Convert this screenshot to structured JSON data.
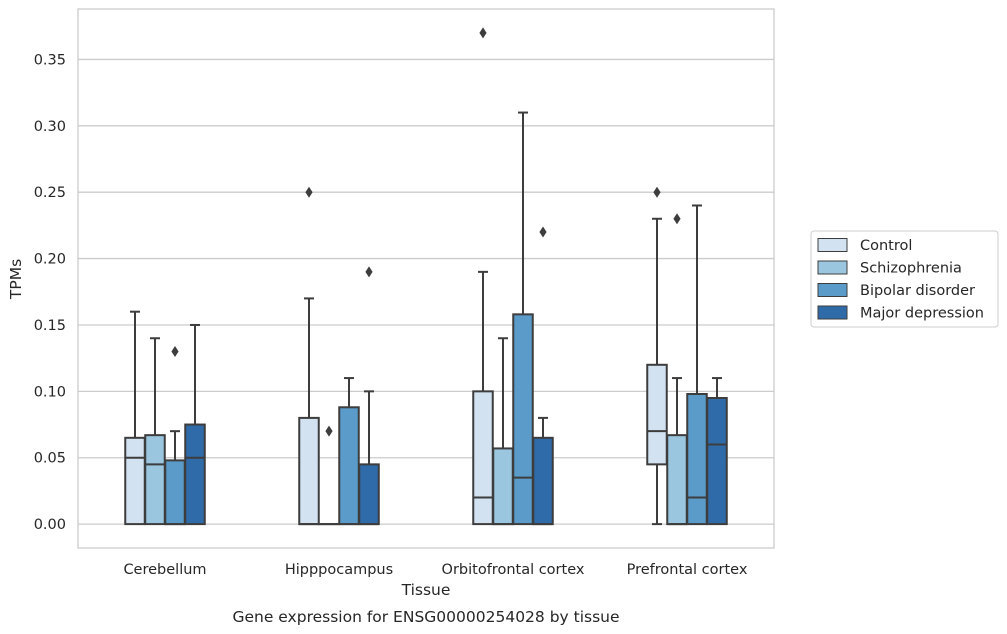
{
  "chart_data": {
    "type": "box",
    "caption": "Gene expression for ENSG00000254028 by tissue",
    "xlabel": "Tissue",
    "ylabel": "TPMs",
    "ylim": [
      -0.018,
      0.388
    ],
    "yticks": [
      0.0,
      0.05,
      0.1,
      0.15,
      0.2,
      0.25,
      0.3,
      0.35
    ],
    "ytick_labels": [
      "0.00",
      "0.05",
      "0.10",
      "0.15",
      "0.20",
      "0.25",
      "0.30",
      "0.35"
    ],
    "grid": "horizontal",
    "legend_position": "right",
    "categories": [
      "Cerebellum",
      "Hipppocampus",
      "Orbitofrontal cortex",
      "Prefrontal cortex"
    ],
    "series": [
      {
        "name": "Control",
        "color": "#d2e2f1",
        "boxes": [
          {
            "q1": 0.0,
            "median": 0.05,
            "q3": 0.065,
            "whislo": 0.0,
            "whishi": 0.16,
            "fliers": []
          },
          {
            "q1": 0.0,
            "median": 0.0,
            "q3": 0.08,
            "whislo": 0.0,
            "whishi": 0.17,
            "fliers": [
              0.25
            ]
          },
          {
            "q1": 0.0,
            "median": 0.02,
            "q3": 0.1,
            "whislo": 0.0,
            "whishi": 0.19,
            "fliers": [
              0.37
            ]
          },
          {
            "q1": 0.045,
            "median": 0.07,
            "q3": 0.12,
            "whislo": 0.0,
            "whishi": 0.23,
            "fliers": [
              0.25
            ]
          }
        ]
      },
      {
        "name": "Schizophrenia",
        "color": "#9bc6e0",
        "boxes": [
          {
            "q1": 0.0,
            "median": 0.045,
            "q3": 0.067,
            "whislo": 0.0,
            "whishi": 0.14,
            "fliers": []
          },
          {
            "q1": 0.0,
            "median": 0.0,
            "q3": 0.0,
            "whislo": 0.0,
            "whishi": 0.0,
            "fliers": [
              0.07
            ]
          },
          {
            "q1": 0.0,
            "median": 0.0,
            "q3": 0.057,
            "whislo": 0.0,
            "whishi": 0.14,
            "fliers": []
          },
          {
            "q1": 0.0,
            "median": 0.0,
            "q3": 0.067,
            "whislo": 0.0,
            "whishi": 0.11,
            "fliers": [
              0.23
            ]
          }
        ]
      },
      {
        "name": "Bipolar disorder",
        "color": "#5a9bc9",
        "boxes": [
          {
            "q1": 0.0,
            "median": 0.0,
            "q3": 0.048,
            "whislo": 0.0,
            "whishi": 0.07,
            "fliers": [
              0.13
            ]
          },
          {
            "q1": 0.0,
            "median": 0.0,
            "q3": 0.088,
            "whislo": 0.0,
            "whishi": 0.11,
            "fliers": []
          },
          {
            "q1": 0.0,
            "median": 0.035,
            "q3": 0.158,
            "whislo": 0.0,
            "whishi": 0.31,
            "fliers": []
          },
          {
            "q1": 0.0,
            "median": 0.02,
            "q3": 0.098,
            "whislo": 0.0,
            "whishi": 0.24,
            "fliers": []
          }
        ]
      },
      {
        "name": "Major depression",
        "color": "#2f6ba9",
        "boxes": [
          {
            "q1": 0.0,
            "median": 0.05,
            "q3": 0.075,
            "whislo": 0.0,
            "whishi": 0.15,
            "fliers": []
          },
          {
            "q1": 0.0,
            "median": 0.0,
            "q3": 0.045,
            "whislo": 0.0,
            "whishi": 0.1,
            "fliers": [
              0.19
            ]
          },
          {
            "q1": 0.0,
            "median": 0.0,
            "q3": 0.065,
            "whislo": 0.0,
            "whishi": 0.08,
            "fliers": [
              0.22
            ]
          },
          {
            "q1": 0.0,
            "median": 0.06,
            "q3": 0.095,
            "whislo": 0.0,
            "whishi": 0.11,
            "fliers": []
          }
        ]
      }
    ]
  }
}
